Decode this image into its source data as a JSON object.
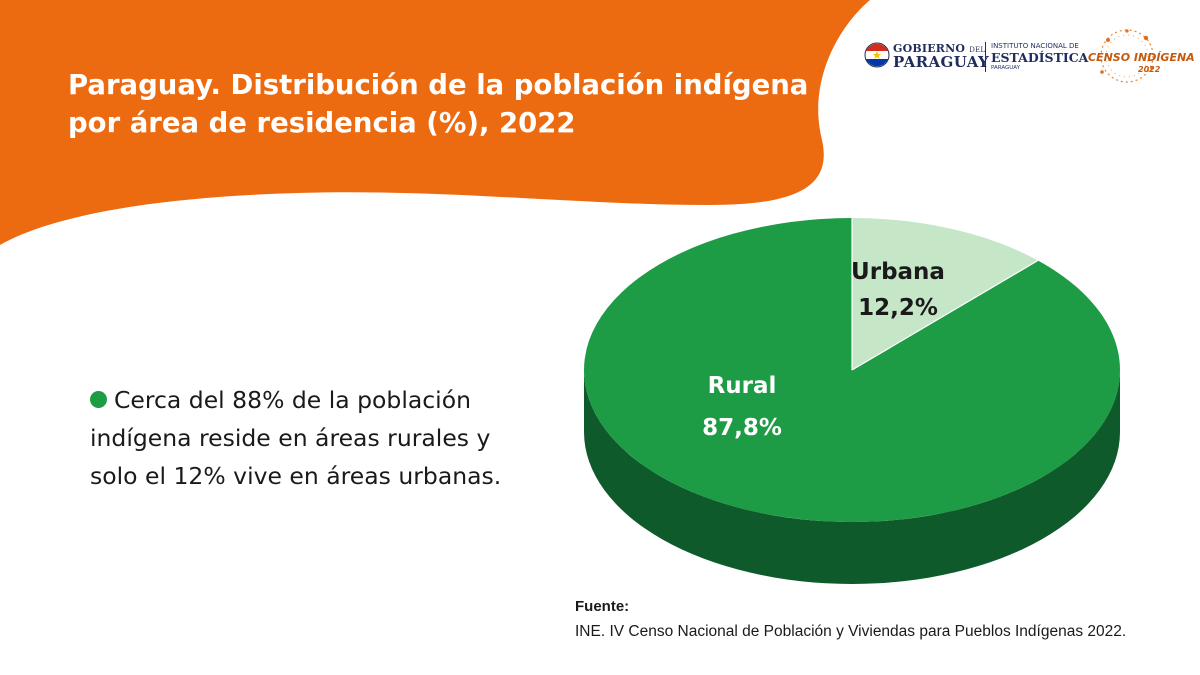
{
  "header": {
    "title_lines": [
      "Paraguay. Distribución de la población indígena",
      "por área de residencia (%), 2022"
    ]
  },
  "logos": {
    "gobierno_line1": "GOBIERNO",
    "gobierno_del": "DEL",
    "gobierno_line2": "PARAGUAY",
    "ine_line1": "INSTITUTO NACIONAL DE",
    "ine_line2": "ESTADÍSTICA",
    "ine_line3": "PARAGUAY",
    "censo_label": "CENSO INDÍGENA",
    "censo_year": "2022"
  },
  "bullet": {
    "text": "Cerca del 88% de la población indígena reside en áreas rurales y solo el 12% vive en áreas urbanas."
  },
  "chart_data": {
    "type": "pie",
    "title": "Paraguay. Distribución de la población indígena por área de residencia (%), 2022",
    "categories": [
      "Rural",
      "Urbana"
    ],
    "values": [
      87.8,
      12.2
    ],
    "value_labels": [
      "87,8%",
      "12,2%"
    ],
    "colors": [
      "#1e9b45",
      "#c6e6c8"
    ],
    "side_color": "#0f5a2b",
    "label_colors": [
      "#ffffff",
      "#1a1a1a"
    ],
    "legend": "none",
    "style": "3d"
  },
  "source": {
    "label": "Fuente:",
    "text": "INE. IV Censo Nacional de Población y Viviendas para Pueblos Indígenas 2022."
  },
  "colors": {
    "accent_orange": "#ec6a10",
    "bullet_green": "#1e9b45"
  }
}
